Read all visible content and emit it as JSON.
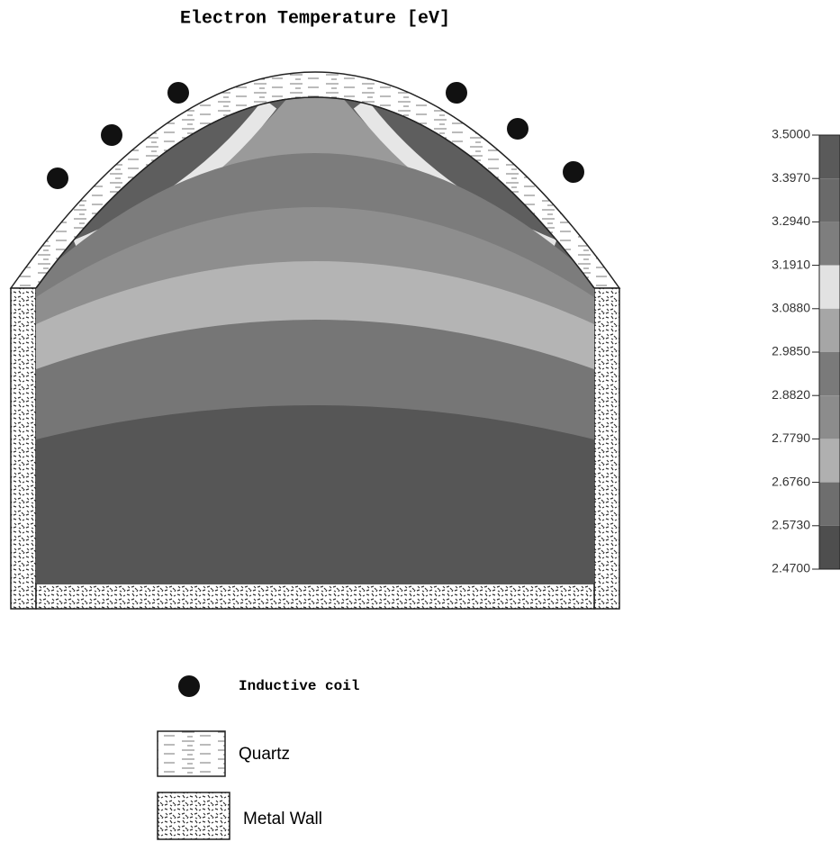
{
  "title": "Electron Temperature [eV]",
  "colorbar": {
    "ticks": [
      {
        "value": 3.5,
        "label": "3.5000"
      },
      {
        "value": 3.397,
        "label": "3.3970"
      },
      {
        "value": 3.294,
        "label": "3.2940"
      },
      {
        "value": 3.191,
        "label": "3.1910"
      },
      {
        "value": 3.088,
        "label": "3.0880"
      },
      {
        "value": 2.985,
        "label": "2.9850"
      },
      {
        "value": 2.882,
        "label": "2.8820"
      },
      {
        "value": 2.779,
        "label": "2.7790"
      },
      {
        "value": 2.676,
        "label": "2.6760"
      },
      {
        "value": 2.573,
        "label": "2.5730"
      },
      {
        "value": 2.47,
        "label": "2.4700"
      }
    ]
  },
  "legend": [
    {
      "label": "Inductive coil"
    },
    {
      "label": "Quartz"
    },
    {
      "label": "Metal Wall"
    }
  ]
}
